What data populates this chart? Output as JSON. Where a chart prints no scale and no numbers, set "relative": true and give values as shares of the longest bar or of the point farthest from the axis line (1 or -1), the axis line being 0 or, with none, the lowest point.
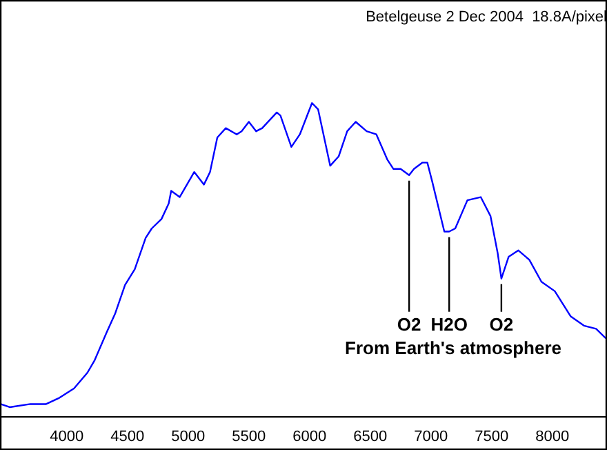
{
  "chart_data": {
    "type": "line",
    "title": "Betelgeuse 2 Dec 2004  18.8A/pixel",
    "relative": true,
    "x": [
      3455,
      3530,
      3700,
      3830,
      3940,
      4060,
      4170,
      4230,
      4330,
      4400,
      4480,
      4560,
      4650,
      4700,
      4780,
      4840,
      4860,
      4930,
      5050,
      5130,
      5180,
      5240,
      5310,
      5400,
      5440,
      5500,
      5560,
      5610,
      5730,
      5760,
      5850,
      5920,
      6020,
      6070,
      6170,
      6240,
      6310,
      6380,
      6470,
      6550,
      6640,
      6690,
      6750,
      6820,
      6860,
      6930,
      6970,
      7010,
      7060,
      7110,
      7150,
      7200,
      7300,
      7410,
      7490,
      7550,
      7580,
      7640,
      7720,
      7810,
      7910,
      8020,
      8150,
      8260,
      8360,
      8440
    ],
    "series": [
      {
        "color": "#0000ff",
        "values": [
          0.04,
          0.03,
          0.04,
          0.04,
          0.06,
          0.09,
          0.14,
          0.18,
          0.27,
          0.33,
          0.42,
          0.47,
          0.57,
          0.6,
          0.63,
          0.68,
          0.72,
          0.7,
          0.78,
          0.74,
          0.78,
          0.89,
          0.92,
          0.9,
          0.91,
          0.94,
          0.91,
          0.92,
          0.97,
          0.96,
          0.86,
          0.9,
          1.0,
          0.98,
          0.8,
          0.83,
          0.91,
          0.94,
          0.91,
          0.9,
          0.82,
          0.79,
          0.79,
          0.77,
          0.79,
          0.81,
          0.81,
          0.75,
          0.67,
          0.59,
          0.59,
          0.6,
          0.69,
          0.7,
          0.64,
          0.52,
          0.44,
          0.51,
          0.53,
          0.5,
          0.43,
          0.4,
          0.32,
          0.29,
          0.28,
          0.25
        ]
      }
    ],
    "xlim": [
      3450,
      8450
    ],
    "xticks": [
      4000,
      4500,
      5000,
      5500,
      6000,
      6500,
      7000,
      7500,
      8000
    ],
    "grid": false,
    "legend": false,
    "marker": "none",
    "line_style": "solid",
    "annotations": [
      {
        "text": "O2",
        "x": 6820,
        "y": 0.77
      },
      {
        "text": "H2O",
        "x": 7150,
        "y": 0.59
      },
      {
        "text": "O2",
        "x": 7580,
        "y": 0.44
      },
      "From Earth's atmosphere"
    ]
  }
}
